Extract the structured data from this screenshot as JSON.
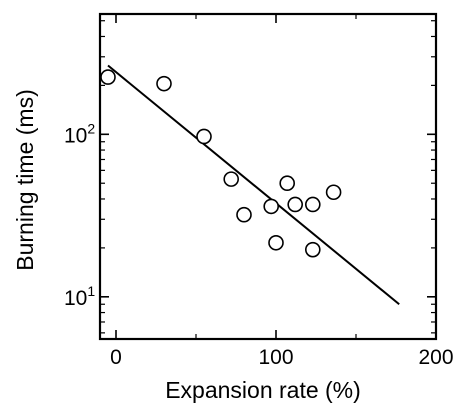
{
  "chart_data": {
    "type": "scatter",
    "title": "",
    "xlabel": "Expansion rate (%)",
    "ylabel": "Burning time (ms)",
    "xlim": [
      -10,
      200
    ],
    "ylim": [
      5.5,
      550
    ],
    "yscale": "log",
    "grid": false,
    "x_ticks": [
      {
        "value": 0,
        "label": "0"
      },
      {
        "value": 100,
        "label": "100"
      },
      {
        "value": 200,
        "label": "200"
      }
    ],
    "y_ticks": [
      {
        "value": 10,
        "base": "10",
        "exp": "1"
      },
      {
        "value": 100,
        "base": "10",
        "exp": "2"
      }
    ],
    "points": [
      {
        "x": -5,
        "y": 225
      },
      {
        "x": 30,
        "y": 205
      },
      {
        "x": 55,
        "y": 97
      },
      {
        "x": 72,
        "y": 53
      },
      {
        "x": 80,
        "y": 32
      },
      {
        "x": 97,
        "y": 36
      },
      {
        "x": 100,
        "y": 21.5
      },
      {
        "x": 107,
        "y": 50
      },
      {
        "x": 112,
        "y": 37
      },
      {
        "x": 123,
        "y": 19.5
      },
      {
        "x": 123,
        "y": 37
      },
      {
        "x": 136,
        "y": 44
      }
    ],
    "fit_line": {
      "x": [
        -5,
        177
      ],
      "y": [
        265,
        9
      ]
    }
  }
}
